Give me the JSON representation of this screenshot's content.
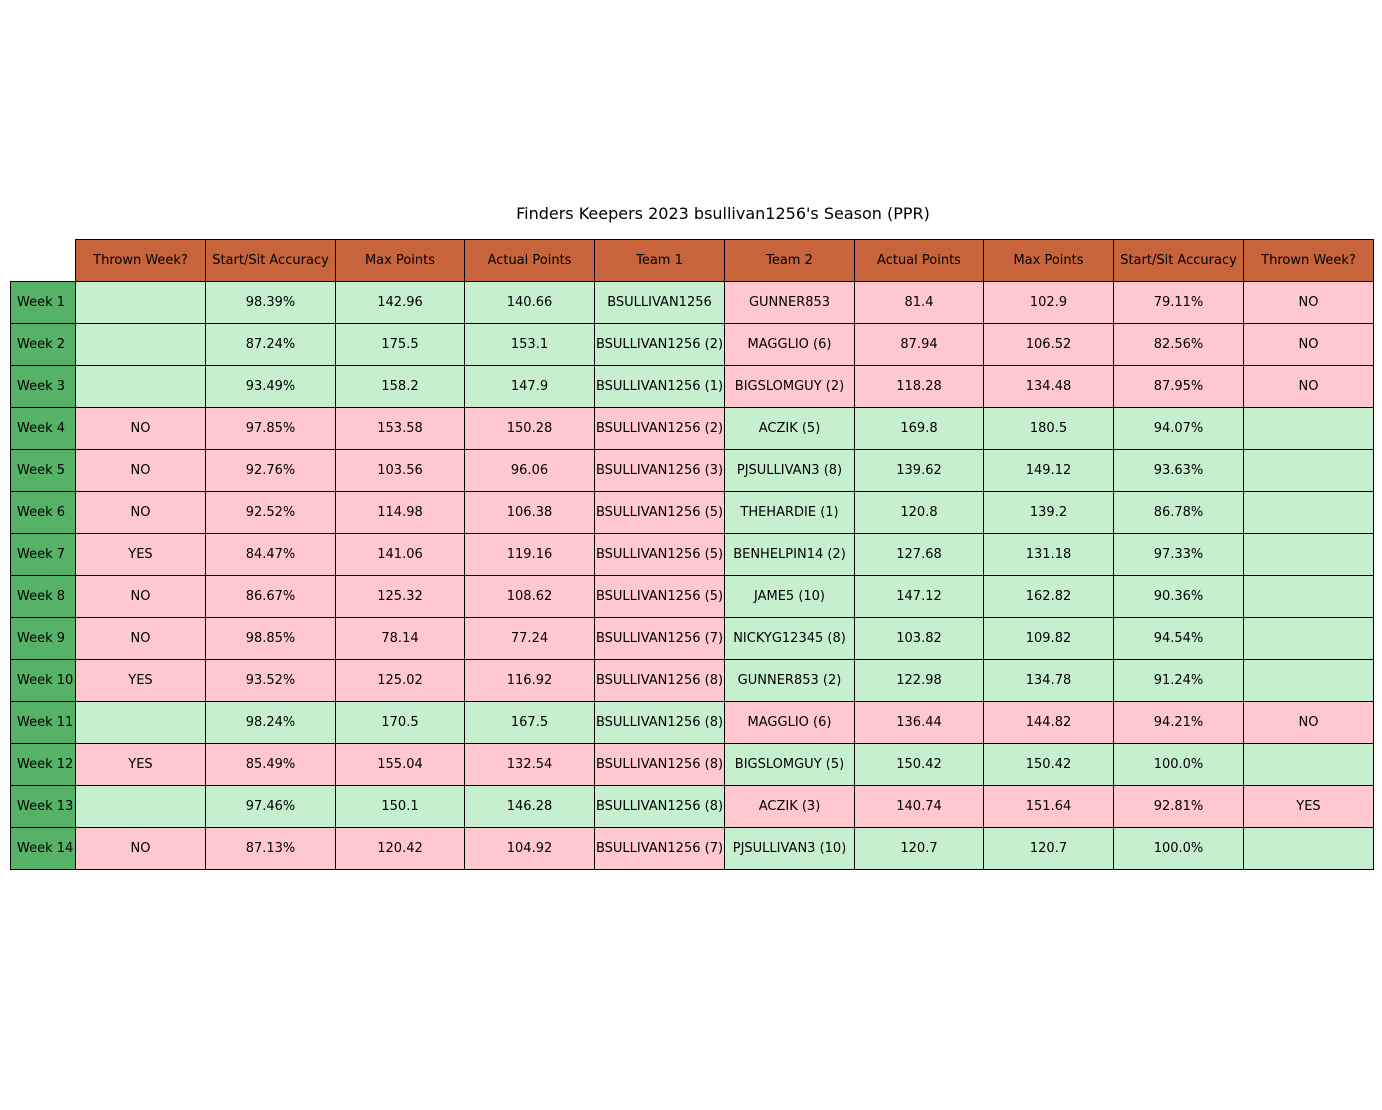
{
  "chart_data": {
    "type": "table",
    "title": "Finders Keepers 2023 bsullivan1256's Season (PPR)",
    "columns": [
      "Thrown Week?",
      "Start/Sit Accuracy",
      "Max Points",
      "Actual Points",
      "Team 1",
      "Team 2",
      "Actual Points",
      "Max Points",
      "Start/Sit Accuracy",
      "Thrown Week?"
    ],
    "colors": {
      "header": "#c8643c",
      "row_header": "#55b266",
      "winner": "#c6efce",
      "loser": "#ffc7ce"
    },
    "rows": [
      {
        "label": "Week 1",
        "winner": "team1",
        "cells": [
          "",
          "98.39%",
          "142.96",
          "140.66",
          "BSULLIVAN1256",
          "GUNNER853",
          "81.4",
          "102.9",
          "79.11%",
          "NO"
        ]
      },
      {
        "label": "Week 2",
        "winner": "team1",
        "cells": [
          "",
          "87.24%",
          "175.5",
          "153.1",
          "BSULLIVAN1256 (2)",
          "MAGGLIO (6)",
          "87.94",
          "106.52",
          "82.56%",
          "NO"
        ]
      },
      {
        "label": "Week 3",
        "winner": "team1",
        "cells": [
          "",
          "93.49%",
          "158.2",
          "147.9",
          "BSULLIVAN1256 (1)",
          "BIGSLOMGUY (2)",
          "118.28",
          "134.48",
          "87.95%",
          "NO"
        ]
      },
      {
        "label": "Week 4",
        "winner": "team2",
        "cells": [
          "NO",
          "97.85%",
          "153.58",
          "150.28",
          "BSULLIVAN1256 (2)",
          "ACZIK (5)",
          "169.8",
          "180.5",
          "94.07%",
          ""
        ]
      },
      {
        "label": "Week 5",
        "winner": "team2",
        "cells": [
          "NO",
          "92.76%",
          "103.56",
          "96.06",
          "BSULLIVAN1256 (3)",
          "PJSULLIVAN3 (8)",
          "139.62",
          "149.12",
          "93.63%",
          ""
        ]
      },
      {
        "label": "Week 6",
        "winner": "team2",
        "cells": [
          "NO",
          "92.52%",
          "114.98",
          "106.38",
          "BSULLIVAN1256 (5)",
          "THEHARDIE (1)",
          "120.8",
          "139.2",
          "86.78%",
          ""
        ]
      },
      {
        "label": "Week 7",
        "winner": "team2",
        "cells": [
          "YES",
          "84.47%",
          "141.06",
          "119.16",
          "BSULLIVAN1256 (5)",
          "BENHELPIN14 (2)",
          "127.68",
          "131.18",
          "97.33%",
          ""
        ]
      },
      {
        "label": "Week 8",
        "winner": "team2",
        "cells": [
          "NO",
          "86.67%",
          "125.32",
          "108.62",
          "BSULLIVAN1256 (5)",
          "JAME5 (10)",
          "147.12",
          "162.82",
          "90.36%",
          ""
        ]
      },
      {
        "label": "Week 9",
        "winner": "team2",
        "cells": [
          "NO",
          "98.85%",
          "78.14",
          "77.24",
          "BSULLIVAN1256 (7)",
          "NICKYG12345 (8)",
          "103.82",
          "109.82",
          "94.54%",
          ""
        ]
      },
      {
        "label": "Week 10",
        "winner": "team2",
        "cells": [
          "YES",
          "93.52%",
          "125.02",
          "116.92",
          "BSULLIVAN1256 (8)",
          "GUNNER853 (2)",
          "122.98",
          "134.78",
          "91.24%",
          ""
        ]
      },
      {
        "label": "Week 11",
        "winner": "team1",
        "cells": [
          "",
          "98.24%",
          "170.5",
          "167.5",
          "BSULLIVAN1256 (8)",
          "MAGGLIO (6)",
          "136.44",
          "144.82",
          "94.21%",
          "NO"
        ]
      },
      {
        "label": "Week 12",
        "winner": "team2",
        "cells": [
          "YES",
          "85.49%",
          "155.04",
          "132.54",
          "BSULLIVAN1256 (8)",
          "BIGSLOMGUY (5)",
          "150.42",
          "150.42",
          "100.0%",
          ""
        ]
      },
      {
        "label": "Week 13",
        "winner": "team1",
        "cells": [
          "",
          "97.46%",
          "150.1",
          "146.28",
          "BSULLIVAN1256 (8)",
          "ACZIK (3)",
          "140.74",
          "151.64",
          "92.81%",
          "YES"
        ]
      },
      {
        "label": "Week 14",
        "winner": "team2",
        "cells": [
          "NO",
          "87.13%",
          "120.42",
          "104.92",
          "BSULLIVAN1256 (7)",
          "PJSULLIVAN3 (10)",
          "120.7",
          "120.7",
          "100.0%",
          ""
        ]
      }
    ]
  }
}
